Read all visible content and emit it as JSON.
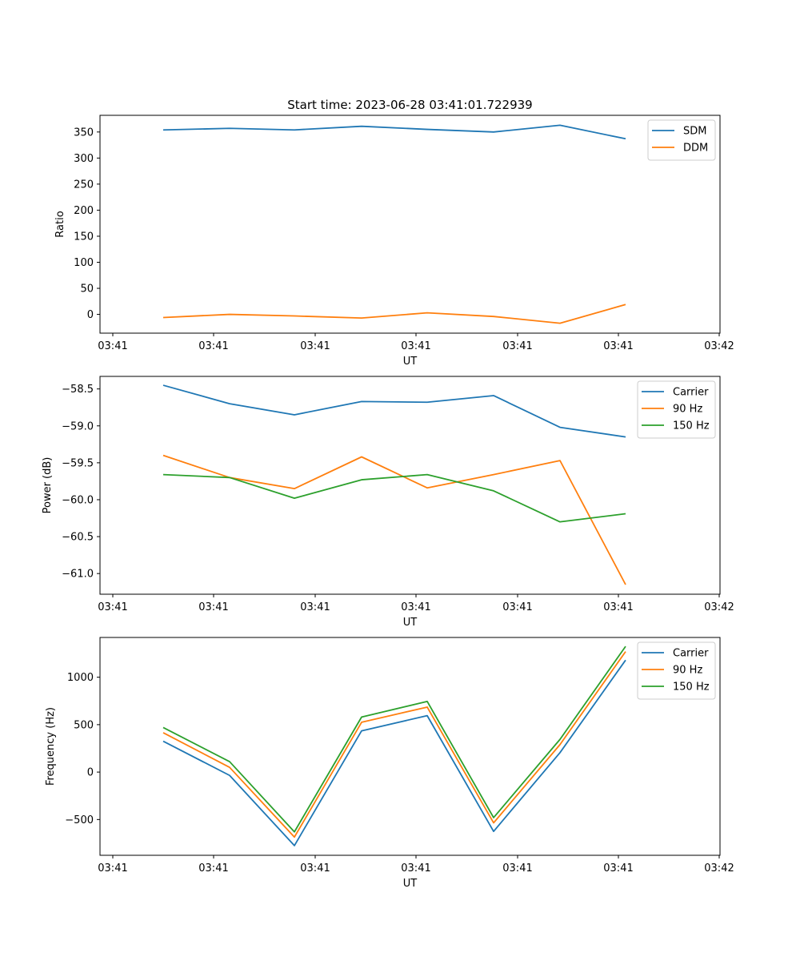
{
  "figure_title": "Start time: 2023-06-28 03:41:01.722939",
  "chart_data": [
    {
      "type": "line",
      "xlabel": "UT",
      "ylabel": "Ratio",
      "x_tick_labels": [
        "03:41",
        "03:41",
        "03:41",
        "03:41",
        "03:41",
        "03:41",
        "03:42"
      ],
      "y_ticks": [
        0,
        50,
        100,
        150,
        200,
        250,
        300,
        350
      ],
      "ylim": [
        -36,
        382
      ],
      "legend_position": "upper-right",
      "colors": [
        "#1f77b4",
        "#ff7f0e"
      ],
      "series": [
        {
          "name": "SDM",
          "values": [
            354,
            357,
            354,
            361,
            355,
            350,
            363,
            337
          ]
        },
        {
          "name": "DDM",
          "values": [
            -6,
            0,
            -3,
            -7,
            3,
            -4,
            -17,
            19
          ]
        }
      ]
    },
    {
      "type": "line",
      "xlabel": "UT",
      "ylabel": "Power (dB)",
      "x_tick_labels": [
        "03:41",
        "03:41",
        "03:41",
        "03:41",
        "03:41",
        "03:41",
        "03:42"
      ],
      "y_ticks": [
        -61.0,
        -60.5,
        -60.0,
        -59.5,
        -59.0,
        -58.5
      ],
      "ylim": [
        -61.28,
        -58.33
      ],
      "legend_position": "upper-right",
      "colors": [
        "#1f77b4",
        "#ff7f0e",
        "#2ca02c"
      ],
      "series": [
        {
          "name": "Carrier",
          "values": [
            -58.45,
            -58.7,
            -58.85,
            -58.67,
            -58.68,
            -58.59,
            -59.02,
            -59.15
          ]
        },
        {
          "name": "90 Hz",
          "values": [
            -59.4,
            -59.7,
            -59.85,
            -59.42,
            -59.84,
            -59.66,
            -59.47,
            -61.15
          ]
        },
        {
          "name": "150 Hz",
          "values": [
            -59.66,
            -59.7,
            -59.98,
            -59.73,
            -59.66,
            -59.88,
            -60.3,
            -60.19
          ]
        }
      ]
    },
    {
      "type": "line",
      "xlabel": "UT",
      "ylabel": "Frequency (Hz)",
      "x_tick_labels": [
        "03:41",
        "03:41",
        "03:41",
        "03:41",
        "03:41",
        "03:41",
        "03:42"
      ],
      "y_ticks": [
        -500,
        0,
        500,
        1000
      ],
      "ylim": [
        -877,
        1419
      ],
      "legend_position": "upper-right",
      "colors": [
        "#1f77b4",
        "#ff7f0e",
        "#2ca02c"
      ],
      "series": [
        {
          "name": "Carrier",
          "values": [
            325,
            -35,
            -775,
            435,
            595,
            -625,
            205,
            1180
          ]
        },
        {
          "name": "90 Hz",
          "values": [
            415,
            50,
            -685,
            525,
            685,
            -535,
            290,
            1270
          ]
        },
        {
          "name": "150 Hz",
          "values": [
            470,
            110,
            -630,
            580,
            745,
            -480,
            345,
            1325
          ]
        }
      ]
    }
  ]
}
